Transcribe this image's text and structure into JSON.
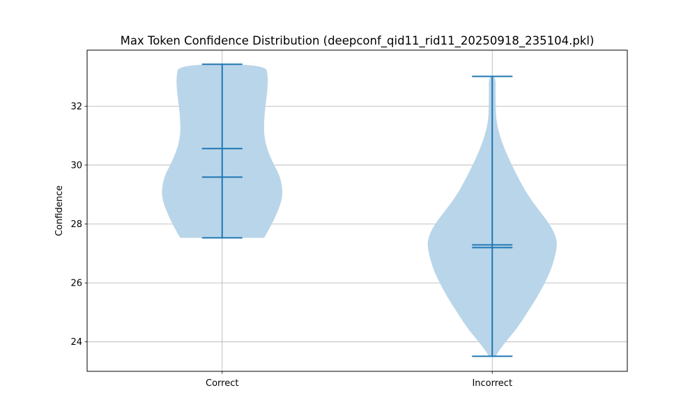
{
  "chart_data": {
    "type": "violin",
    "title": "Max Token Confidence Distribution (deepconf_qid11_rid11_20250918_235104.pkl)",
    "xlabel": "",
    "ylabel": "Confidence",
    "categories": [
      "Correct",
      "Incorrect"
    ],
    "ylim": [
      23.0,
      33.9
    ],
    "yticks": [
      24,
      26,
      28,
      30,
      32
    ],
    "ytick_labels": [
      "24",
      "26",
      "28",
      "30",
      "32"
    ],
    "grid": true,
    "colors": {
      "body": "#b9d5e9",
      "lines": "#1f77b4"
    },
    "violins": [
      {
        "category": "Correct",
        "min": 27.53,
        "max": 33.42,
        "mean": 30.56,
        "median": 29.59,
        "density": [
          [
            27.53,
            0.62
          ],
          [
            27.8,
            0.69
          ],
          [
            28.2,
            0.78
          ],
          [
            28.7,
            0.87
          ],
          [
            29.1,
            0.9
          ],
          [
            29.6,
            0.86
          ],
          [
            30.0,
            0.77
          ],
          [
            30.5,
            0.67
          ],
          [
            31.0,
            0.62
          ],
          [
            31.5,
            0.62
          ],
          [
            32.0,
            0.64
          ],
          [
            32.5,
            0.67
          ],
          [
            33.0,
            0.68
          ],
          [
            33.42,
            0.64
          ]
        ]
      },
      {
        "category": "Incorrect",
        "min": 23.51,
        "max": 33.01,
        "mean": 27.29,
        "median": 27.2,
        "density": [
          [
            23.51,
            0.05
          ],
          [
            23.7,
            0.1
          ],
          [
            24.0,
            0.2
          ],
          [
            24.5,
            0.38
          ],
          [
            25.0,
            0.52
          ],
          [
            25.5,
            0.66
          ],
          [
            26.0,
            0.78
          ],
          [
            26.5,
            0.88
          ],
          [
            27.0,
            0.94
          ],
          [
            27.3,
            0.96
          ],
          [
            27.6,
            0.94
          ],
          [
            28.0,
            0.85
          ],
          [
            28.5,
            0.68
          ],
          [
            29.0,
            0.52
          ],
          [
            29.5,
            0.4
          ],
          [
            30.0,
            0.29
          ],
          [
            30.5,
            0.19
          ],
          [
            31.0,
            0.11
          ],
          [
            31.5,
            0.06
          ],
          [
            32.0,
            0.05
          ],
          [
            32.5,
            0.05
          ],
          [
            33.01,
            0.05
          ]
        ]
      }
    ]
  }
}
